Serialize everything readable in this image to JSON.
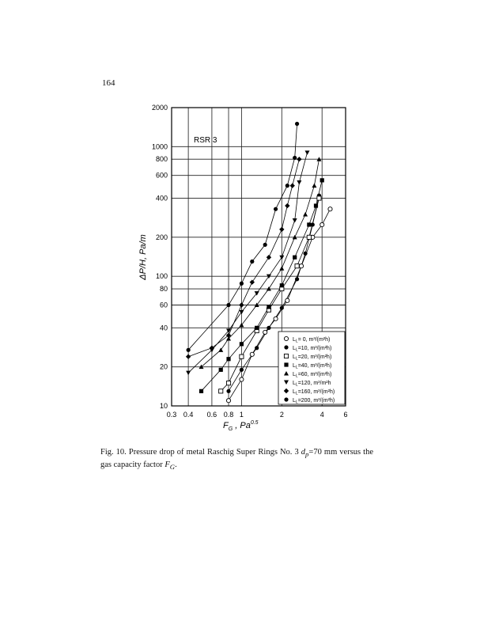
{
  "page_number": "164",
  "caption": {
    "prefix": "Fig. 10. Pressure drop of metal Raschig Super Rings No. 3 ",
    "dp_symbol": "d",
    "dp_sub": "p",
    "middle": "=70 mm versus the gas capacity factor ",
    "fg_symbol": "F",
    "fg_sub": "G",
    "suffix": "."
  },
  "chart_data": {
    "type": "scatter",
    "title": "",
    "annotation": "RSR 3",
    "xlabel": "F_G , Pa^0.5",
    "xlabel_main": "F",
    "xlabel_sub": "G",
    "xlabel_unit": " , Pa",
    "xlabel_sup": "0.5",
    "ylabel": "ΔP/H, Pa/m",
    "x_scale": "log",
    "y_scale": "log",
    "xlim": [
      0.3,
      6
    ],
    "ylim": [
      10,
      2000
    ],
    "x_ticks": [
      0.3,
      0.4,
      0.6,
      0.8,
      1,
      2,
      4,
      6
    ],
    "x_tick_labels": [
      "0.3",
      "0.4",
      "0.6",
      "0.8",
      "1",
      "2",
      "4",
      "6"
    ],
    "y_ticks": [
      10,
      20,
      40,
      60,
      80,
      100,
      200,
      400,
      600,
      800,
      1000,
      2000
    ],
    "y_tick_labels": [
      "10",
      "20",
      "40",
      "60",
      "80",
      "100",
      "200",
      "400",
      "600",
      "800",
      "1000",
      "2000"
    ],
    "grid": true,
    "legend_position": "bottom-right",
    "series": [
      {
        "name": "L_L= 0, m³/(m²h)",
        "legend_main": "L",
        "legend_sub": "L",
        "legend_rest": "= 0, m³/(m²h)",
        "marker": "open-circle",
        "x": [
          0.8,
          1.0,
          1.2,
          1.5,
          1.8,
          2.2,
          2.8,
          3.4,
          4.0,
          4.6
        ],
        "y": [
          11,
          16,
          25,
          37,
          47,
          65,
          120,
          200,
          250,
          330
        ]
      },
      {
        "name": "L_L=10, m³/(m²h)",
        "legend_main": "L",
        "legend_sub": "L",
        "legend_rest": "=10, m³/(m²h)",
        "marker": "filled-circle",
        "x": [
          0.8,
          1.0,
          1.3,
          1.6,
          2.0,
          2.6,
          3.0,
          3.4,
          3.8
        ],
        "y": [
          13,
          19,
          28,
          40,
          57,
          95,
          150,
          250,
          420
        ]
      },
      {
        "name": "L_L=20, m³/(m²h)",
        "legend_main": "L",
        "legend_sub": "L",
        "legend_rest": "=20, m³/(m²h)",
        "marker": "open-square",
        "x": [
          0.7,
          0.8,
          1.0,
          1.3,
          1.6,
          2.0,
          2.6,
          3.2,
          3.8
        ],
        "y": [
          13,
          15,
          24,
          38,
          55,
          80,
          120,
          200,
          400
        ]
      },
      {
        "name": "L_L=40, m³/(m²h)",
        "legend_main": "L",
        "legend_sub": "L",
        "legend_rest": "=40, m³/(m²h)",
        "marker": "filled-square",
        "x": [
          0.5,
          0.7,
          0.8,
          1.0,
          1.3,
          1.6,
          2.0,
          2.5,
          3.2,
          3.6,
          4.0
        ],
        "y": [
          13,
          19,
          23,
          30,
          40,
          58,
          85,
          140,
          250,
          350,
          550
        ]
      },
      {
        "name": "L_L=60, m³/(m²h)",
        "legend_main": "L",
        "legend_sub": "L",
        "legend_rest": "=60, m³/(m²h)",
        "marker": "triangle-up",
        "x": [
          0.5,
          0.7,
          0.8,
          1.0,
          1.3,
          1.6,
          2.0,
          2.5,
          3.0,
          3.5,
          3.8
        ],
        "y": [
          20,
          27,
          33,
          42,
          60,
          80,
          115,
          200,
          300,
          500,
          800
        ]
      },
      {
        "name": "L_L=120, m³/m²h",
        "legend_main": "L",
        "legend_sub": "L",
        "legend_rest": "=120, m³/m²h",
        "marker": "triangle-down",
        "x": [
          0.4,
          0.6,
          0.8,
          1.0,
          1.3,
          1.6,
          2.0,
          2.5,
          2.7,
          3.1
        ],
        "y": [
          18,
          27,
          38,
          53,
          74,
          100,
          140,
          270,
          530,
          900
        ]
      },
      {
        "name": "L_L=160, m³/(m²h)",
        "legend_main": "L",
        "legend_sub": "L",
        "legend_rest": "=160, m³/(m²h)",
        "marker": "diamond",
        "x": [
          0.4,
          0.6,
          0.8,
          1.0,
          1.2,
          1.6,
          2.0,
          2.2,
          2.4,
          2.7
        ],
        "y": [
          24,
          28,
          35,
          60,
          90,
          140,
          230,
          350,
          500,
          800
        ]
      },
      {
        "name": "L_L=200, m³/(m²h)",
        "legend_main": "L",
        "legend_sub": "L",
        "legend_rest": "=200, m³/(m²h)",
        "marker": "filled-circle",
        "x": [
          0.4,
          0.8,
          1.0,
          1.2,
          1.5,
          1.8,
          2.2,
          2.5,
          2.6
        ],
        "y": [
          27,
          60,
          88,
          130,
          175,
          330,
          500,
          820,
          1500
        ]
      }
    ]
  }
}
